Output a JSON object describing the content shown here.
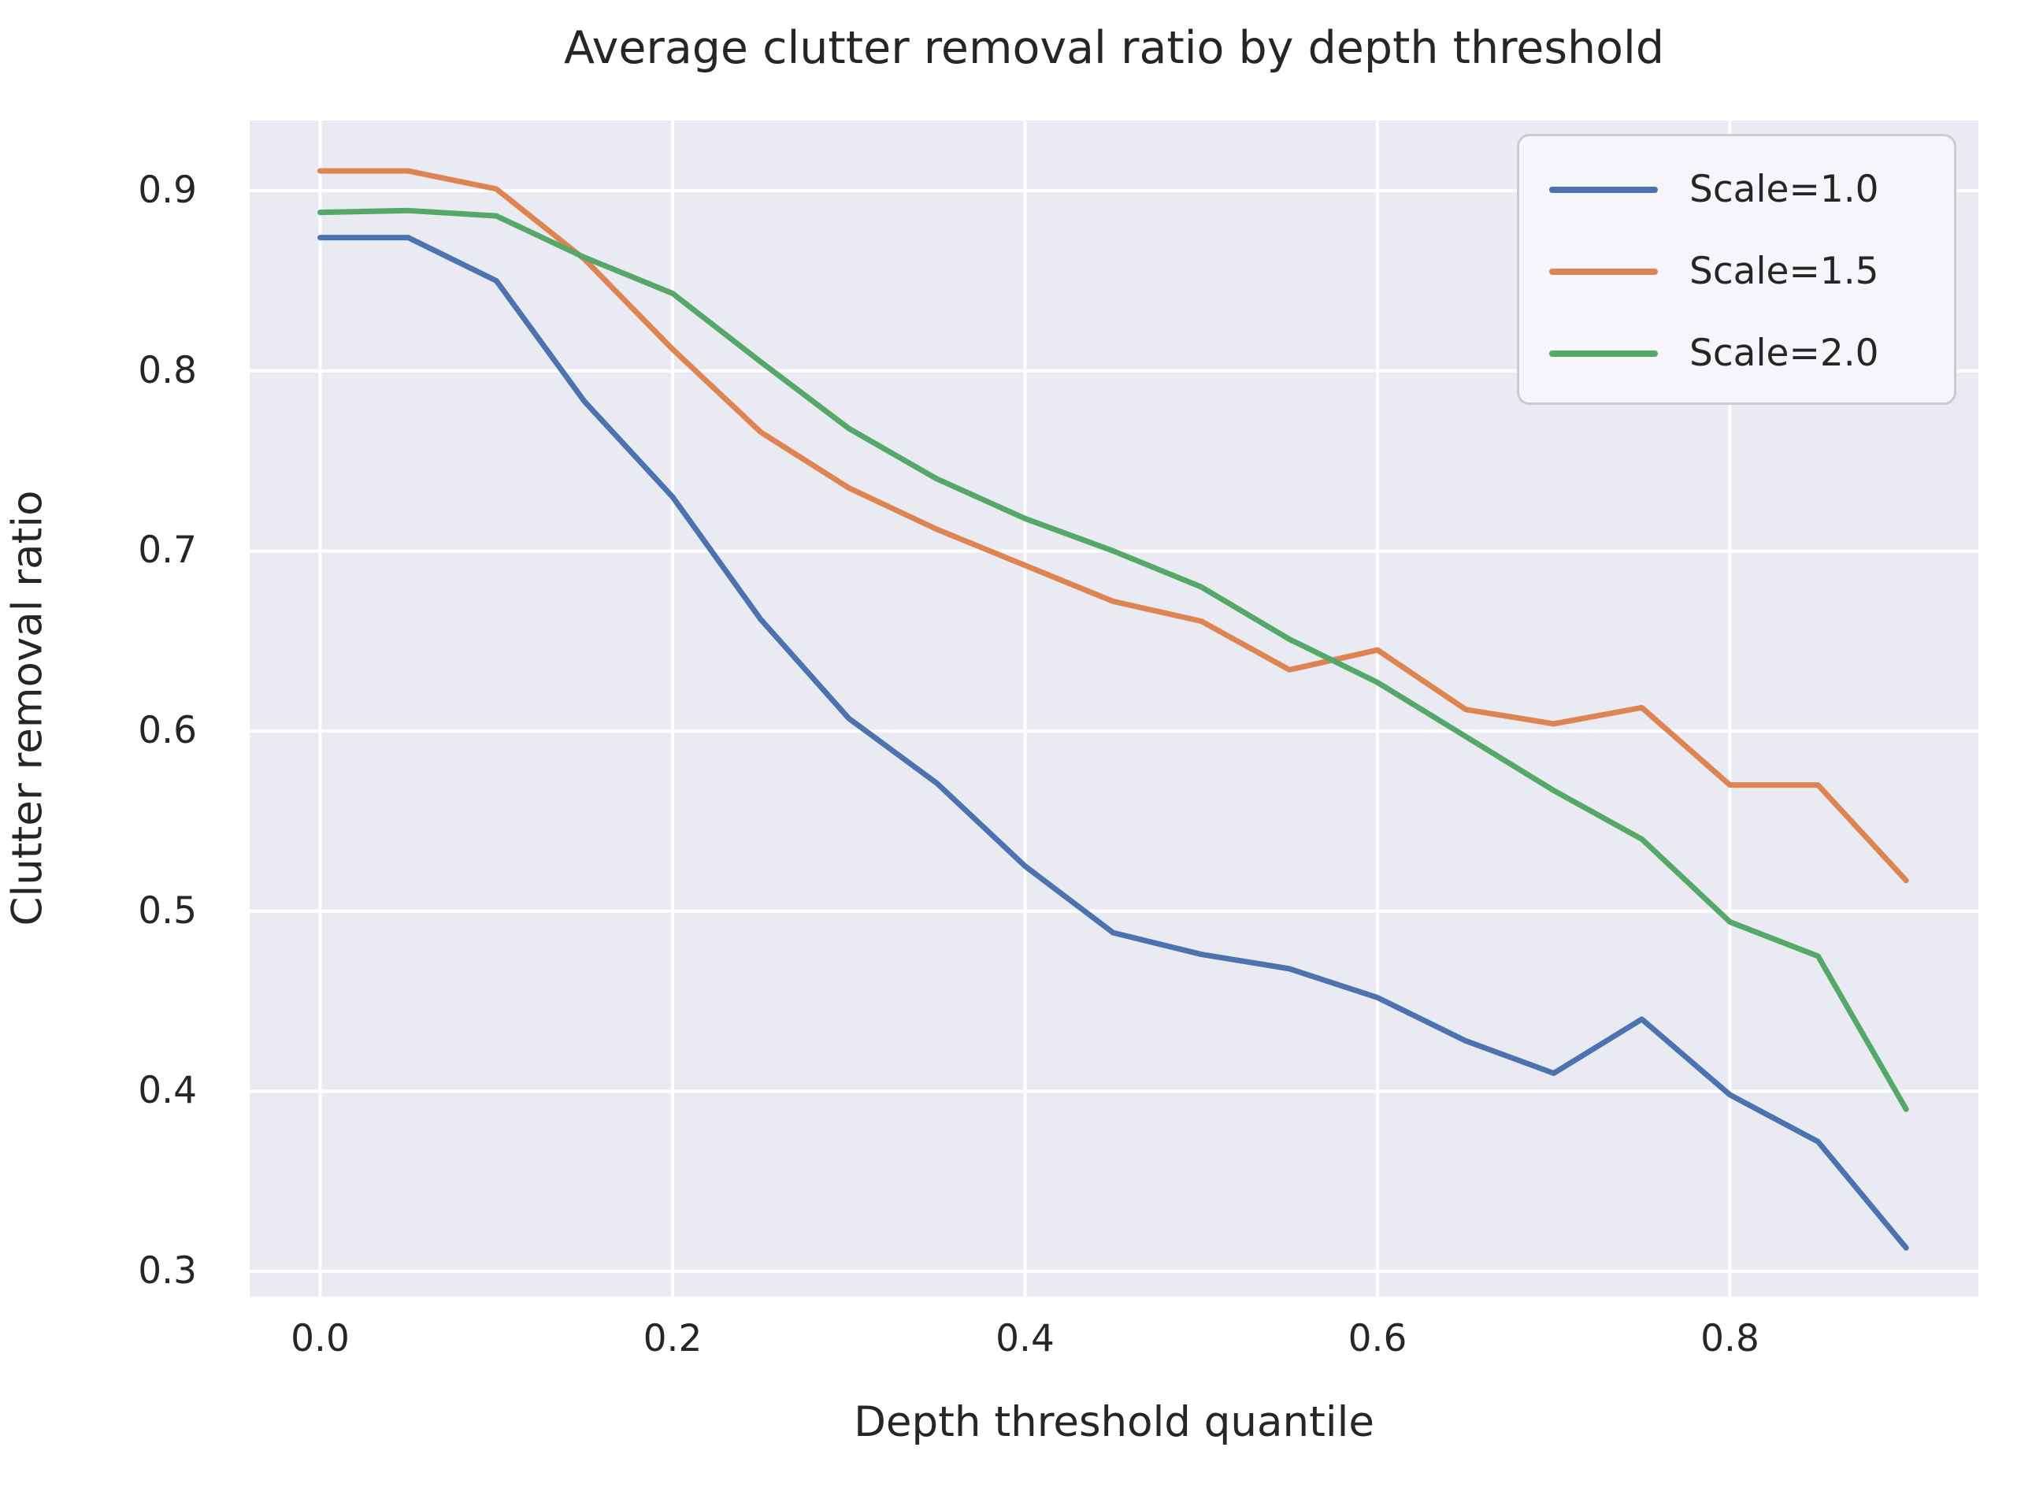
{
  "title": "Average clutter removal ratio by depth threshold",
  "styles": {
    "axes_background": "#eaeaf2",
    "grid_color": "#ffffff",
    "text_color": "#262626",
    "figure_background": "#ffffff",
    "legend_border": "#cacad2"
  },
  "legend": {
    "position": "upper right",
    "entries": [
      "Scale=1.0",
      "Scale=1.5",
      "Scale=2.0"
    ]
  },
  "chart_data": {
    "type": "line",
    "title": "Average clutter removal ratio by depth threshold",
    "xlabel": "Depth threshold quantile",
    "ylabel": "Clutter removal ratio",
    "grid": true,
    "legend_position": "upper right",
    "xlim": [
      -0.04,
      0.941
    ],
    "ylim": [
      0.286,
      0.939
    ],
    "xticks": [
      0.0,
      0.2,
      0.4,
      0.6,
      0.8
    ],
    "yticks": [
      0.3,
      0.4,
      0.5,
      0.6,
      0.7,
      0.8,
      0.9
    ],
    "x": [
      0.0,
      0.05,
      0.1,
      0.15,
      0.2,
      0.25,
      0.3,
      0.35,
      0.4,
      0.45,
      0.5,
      0.55,
      0.6,
      0.65,
      0.7,
      0.75,
      0.8,
      0.85,
      0.9
    ],
    "series": [
      {
        "name": "Scale=1.0",
        "color": "#4c72b0",
        "values": [
          0.874,
          0.874,
          0.85,
          0.783,
          0.73,
          0.662,
          0.607,
          0.571,
          0.525,
          0.488,
          0.476,
          0.468,
          0.452,
          0.428,
          0.41,
          0.44,
          0.398,
          0.372,
          0.313
        ]
      },
      {
        "name": "Scale=1.5",
        "color": "#dd8452",
        "values": [
          0.911,
          0.911,
          0.901,
          0.862,
          0.812,
          0.766,
          0.735,
          0.712,
          0.692,
          0.672,
          0.661,
          0.634,
          0.645,
          0.612,
          0.604,
          0.613,
          0.57,
          0.57,
          0.517
        ]
      },
      {
        "name": "Scale=2.0",
        "color": "#55a868",
        "values": [
          0.888,
          0.889,
          0.886,
          0.863,
          0.843,
          0.805,
          0.768,
          0.74,
          0.718,
          0.7,
          0.68,
          0.651,
          0.627,
          0.597,
          0.567,
          0.54,
          0.494,
          0.475,
          0.39
        ]
      }
    ]
  }
}
